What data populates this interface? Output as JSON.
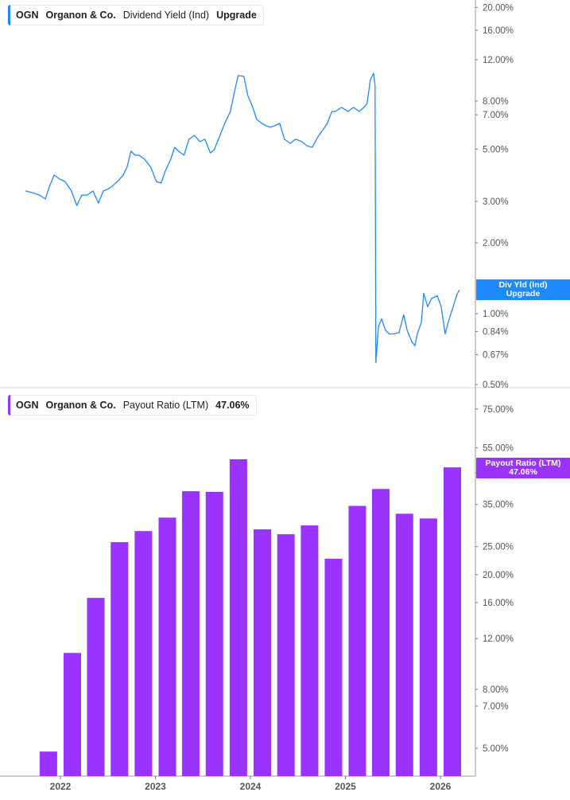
{
  "colors": {
    "yield": "#1e88ff",
    "payout": "#9a33ff",
    "axis": "#bbbbbb",
    "tick_text": "#555555"
  },
  "top_legend": {
    "ticker": "OGN",
    "company": "Organon & Co.",
    "metric": "Dividend Yield (Ind)",
    "value": "Upgrade"
  },
  "bottom_legend": {
    "ticker": "OGN",
    "company": "Organon & Co.",
    "metric": "Payout Ratio (LTM)",
    "value": "47.06%"
  },
  "top_tag": {
    "line1": "Div Yld (Ind)",
    "line2": "Upgrade"
  },
  "bottom_tag": {
    "line1": "Payout Ratio (LTM)",
    "line2": "47.06%"
  },
  "chart_data": [
    {
      "type": "line",
      "series": [
        {
          "name": "Dividend Yield (Ind)",
          "color": "#1e88ff"
        }
      ],
      "yscale": "log",
      "ylim": [
        0.5,
        20
      ],
      "grid": false,
      "yticks": [
        "20.00%",
        "16.00%",
        "12.00%",
        "8.00%",
        "7.00%",
        "5.00%",
        "3.00%",
        "2.00%",
        "1.00%",
        "0.84%",
        "0.67%",
        "0.50%"
      ],
      "ytick_values": [
        20,
        16,
        12,
        8,
        7,
        5,
        3,
        2,
        1,
        0.84,
        0.67,
        0.5
      ],
      "x": [
        "2021-08-19",
        "2021-09-13",
        "2021-10-13",
        "2021-11-04",
        "2021-11-19",
        "2021-12-08",
        "2021-12-29",
        "2022-01-19",
        "2022-02-12",
        "2022-03-05",
        "2022-03-24",
        "2022-04-14",
        "2022-05-06",
        "2022-05-27",
        "2022-06-15",
        "2022-06-30",
        "2022-07-15",
        "2022-08-08",
        "2022-08-30",
        "2022-09-14",
        "2022-09-29",
        "2022-10-15",
        "2022-10-30",
        "2022-11-20",
        "2022-12-14",
        "2023-01-05",
        "2023-01-23",
        "2023-02-08",
        "2023-03-01",
        "2023-03-16",
        "2023-03-31",
        "2023-04-21",
        "2023-05-10",
        "2023-05-31",
        "2023-06-21",
        "2023-07-10",
        "2023-07-31",
        "2023-08-15",
        "2023-09-06",
        "2023-09-24",
        "2023-10-16",
        "2023-11-03",
        "2023-11-15",
        "2023-12-07",
        "2023-12-22",
        "2024-01-10",
        "2024-01-25",
        "2024-02-15",
        "2024-03-02",
        "2024-03-17",
        "2024-04-02",
        "2024-04-23",
        "2024-05-11",
        "2024-06-02",
        "2024-06-23",
        "2024-07-17",
        "2024-08-05",
        "2024-08-26",
        "2024-09-17",
        "2024-10-02",
        "2024-10-23",
        "2024-11-10",
        "2024-11-23",
        "2024-12-17",
        "2025-01-11",
        "2025-02-01",
        "2025-02-23",
        "2025-03-13",
        "2025-03-25",
        "2025-04-07",
        "2025-04-19",
        "2025-04-25",
        "2025-04-28",
        "2025-05-08",
        "2025-05-20",
        "2025-06-04",
        "2025-06-19",
        "2025-07-05",
        "2025-07-26",
        "2025-08-13",
        "2025-08-26",
        "2025-09-13",
        "2025-09-25",
        "2025-10-04",
        "2025-10-20",
        "2025-10-29",
        "2025-11-13",
        "2025-11-28",
        "2025-12-20",
        "2026-01-04",
        "2026-01-19",
        "2026-02-04",
        "2026-02-19",
        "2026-03-06",
        "2026-03-15"
      ],
      "y": [
        3.32,
        3.27,
        3.19,
        3.07,
        3.45,
        3.88,
        3.73,
        3.64,
        3.32,
        2.88,
        3.19,
        3.19,
        3.32,
        2.95,
        3.32,
        3.37,
        3.45,
        3.64,
        3.88,
        4.19,
        4.9,
        4.71,
        4.71,
        4.53,
        4.19,
        3.64,
        3.59,
        4.03,
        4.53,
        5.09,
        4.9,
        4.71,
        5.51,
        5.72,
        5.38,
        5.51,
        4.82,
        4.97,
        5.72,
        6.43,
        7.23,
        8.99,
        10.27,
        10.18,
        8.45,
        7.52,
        6.69,
        6.43,
        6.28,
        6.19,
        6.28,
        6.43,
        5.51,
        5.29,
        5.51,
        5.38,
        5.17,
        5.09,
        5.64,
        5.95,
        6.43,
        7.23,
        7.23,
        7.52,
        7.23,
        7.52,
        7.23,
        7.52,
        7.81,
        9.87,
        10.51,
        9.28,
        0.62,
        0.88,
        0.95,
        0.85,
        0.82,
        0.82,
        0.83,
        0.99,
        0.85,
        0.76,
        0.73,
        0.82,
        0.92,
        1.22,
        1.07,
        1.16,
        1.19,
        1.07,
        0.82,
        0.95,
        1.07,
        1.21,
        1.26
      ]
    },
    {
      "type": "bar",
      "series": [
        {
          "name": "Payout Ratio (LTM)",
          "color": "#9a33ff"
        }
      ],
      "yscale": "log",
      "ylim": [
        4.3,
        80
      ],
      "grid": false,
      "yticks": [
        "75.00%",
        "55.00%",
        "45.00%",
        "35.00%",
        "25.00%",
        "20.00%",
        "16.00%",
        "12.00%",
        "8.00%",
        "7.00%",
        "5.00%"
      ],
      "ytick_values": [
        75,
        55,
        45,
        35,
        25,
        20,
        16,
        12,
        8,
        7,
        5
      ],
      "xticks": [
        "2022",
        "2023",
        "2024",
        "2025",
        "2026"
      ],
      "categories": [
        "2021-10-01",
        "2022-01-01",
        "2022-04-01",
        "2022-07-01",
        "2022-10-01",
        "2023-01-01",
        "2023-04-01",
        "2023-07-01",
        "2023-10-01",
        "2024-01-01",
        "2024-04-01",
        "2024-07-01",
        "2024-10-01",
        "2025-01-01",
        "2025-04-01",
        "2025-07-01",
        "2025-10-01",
        "2026-01-01"
      ],
      "values": [
        4.87,
        10.7,
        16.6,
        25.9,
        28.3,
        31.5,
        38.9,
        38.7,
        50.2,
        28.7,
        27.6,
        29.6,
        22.7,
        34.6,
        39.6,
        32.5,
        31.3,
        47.06
      ]
    }
  ]
}
